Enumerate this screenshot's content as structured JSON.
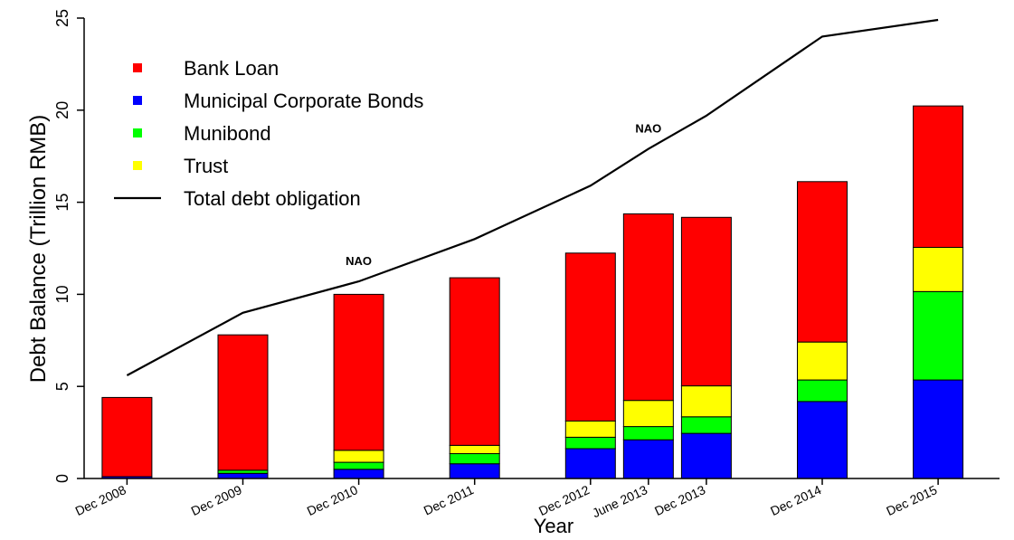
{
  "chart_data": {
    "type": "bar",
    "stacked": true,
    "categories": [
      "Dec 2008",
      "Dec 2009",
      "Dec 2010",
      "Dec 2011",
      "Dec 2012",
      "June 2013",
      "Dec 2013",
      "Dec 2014",
      "Dec 2015"
    ],
    "x_positions": [
      2008.92,
      2009.92,
      2010.92,
      2011.92,
      2012.92,
      2013.42,
      2013.92,
      2014.92,
      2015.92
    ],
    "series": [
      {
        "name": "Municipal Corporate Bonds",
        "color": "#0000ff",
        "values": [
          0.1,
          0.28,
          0.5,
          0.8,
          1.62,
          2.1,
          2.45,
          4.18,
          5.35
        ]
      },
      {
        "name": "Munibond",
        "color": "#00ff00",
        "values": [
          0.0,
          0.17,
          0.38,
          0.55,
          0.62,
          0.72,
          0.9,
          1.17,
          4.8
        ]
      },
      {
        "name": "Trust",
        "color": "#ffff00",
        "values": [
          0.0,
          0.0,
          0.65,
          0.45,
          0.88,
          1.42,
          1.68,
          2.06,
          2.4
        ]
      },
      {
        "name": "Bank Loan",
        "color": "#ff0000",
        "values": [
          4.3,
          7.35,
          8.47,
          9.1,
          9.12,
          10.13,
          9.15,
          8.71,
          7.68
        ]
      }
    ],
    "line": {
      "name": "Total debt obligation",
      "color": "#000000",
      "x": [
        2008.92,
        2009.92,
        2010.92,
        2011.92,
        2012.92,
        2013.42,
        2013.92,
        2014.92,
        2015.92
      ],
      "values": [
        5.6,
        9.0,
        10.7,
        13.0,
        15.9,
        17.9,
        19.7,
        24.0,
        24.9
      ]
    },
    "legend": [
      {
        "label": "Bank Loan",
        "color": "#ff0000",
        "kind": "square"
      },
      {
        "label": "Municipal Corporate Bonds",
        "color": "#0000ff",
        "kind": "square"
      },
      {
        "label": "Munibond",
        "color": "#00ff00",
        "kind": "square"
      },
      {
        "label": "Trust",
        "color": "#ffff00",
        "kind": "square"
      },
      {
        "label": "Total debt obligation",
        "color": "#000000",
        "kind": "line"
      }
    ],
    "legend_position": "top-left",
    "annotations": [
      {
        "text": "NAO",
        "category": "Dec 2010"
      },
      {
        "text": "NAO",
        "category": "June 2013"
      }
    ],
    "xlabel": "Year",
    "ylabel": "Debt Balance (Trillion RMB)",
    "ylim": [
      0,
      25
    ],
    "yticks": [
      0,
      5,
      10,
      15,
      20,
      25
    ],
    "grid": false
  }
}
